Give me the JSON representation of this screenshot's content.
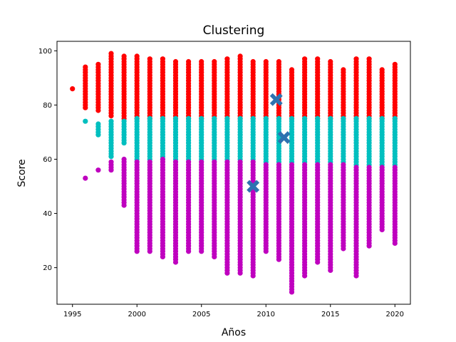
{
  "chart_data": {
    "type": "scatter",
    "title": "Clustering",
    "xlabel": "Años",
    "ylabel": "Score",
    "xlim": [
      1993.8,
      2021.2
    ],
    "ylim": [
      6.5,
      103.5
    ],
    "xticks": [
      1995,
      2000,
      2005,
      2010,
      2015,
      2020
    ],
    "yticks": [
      20,
      40,
      60,
      80,
      100
    ],
    "grid": false,
    "legend": "none",
    "colors": {
      "high": "#ff0000",
      "mid": "#00bfbf",
      "low": "#bf00bf",
      "centroid": "#2d72b0"
    },
    "clusters": [
      {
        "color_key": "high",
        "ranges": [
          [
            1995,
            86,
            86
          ],
          [
            1996,
            79,
            94
          ],
          [
            1997,
            78,
            95
          ],
          [
            1998,
            76,
            99
          ],
          [
            1999,
            75,
            98
          ],
          [
            2000,
            75,
            98
          ],
          [
            2001,
            75,
            97
          ],
          [
            2002,
            75,
            97
          ],
          [
            2003,
            75,
            96
          ],
          [
            2004,
            75,
            96
          ],
          [
            2005,
            75,
            96
          ],
          [
            2006,
            75,
            96
          ],
          [
            2007,
            75,
            97
          ],
          [
            2008,
            75,
            98
          ],
          [
            2009,
            75,
            96
          ],
          [
            2010,
            75,
            96
          ],
          [
            2011,
            75,
            96
          ],
          [
            2012,
            75,
            93
          ],
          [
            2013,
            75,
            97
          ],
          [
            2014,
            75,
            97
          ],
          [
            2015,
            75,
            96
          ],
          [
            2016,
            75,
            93
          ],
          [
            2017,
            75,
            97
          ],
          [
            2018,
            75,
            97
          ],
          [
            2019,
            75,
            93
          ],
          [
            2020,
            75,
            95
          ]
        ]
      },
      {
        "color_key": "mid",
        "ranges": [
          [
            1996,
            74,
            74
          ],
          [
            1997,
            69,
            73
          ],
          [
            1998,
            61,
            74
          ],
          [
            1999,
            66,
            74
          ],
          [
            2000,
            60,
            75
          ],
          [
            2001,
            60,
            75
          ],
          [
            2002,
            60,
            75
          ],
          [
            2003,
            60,
            75
          ],
          [
            2004,
            60,
            75
          ],
          [
            2005,
            60,
            75
          ],
          [
            2006,
            60,
            75
          ],
          [
            2007,
            60,
            75
          ],
          [
            2008,
            60,
            75
          ],
          [
            2009,
            60,
            75
          ],
          [
            2010,
            59,
            75
          ],
          [
            2011,
            59,
            75
          ],
          [
            2012,
            59,
            75
          ],
          [
            2013,
            59,
            75
          ],
          [
            2014,
            59,
            75
          ],
          [
            2015,
            59,
            75
          ],
          [
            2016,
            59,
            75
          ],
          [
            2017,
            58,
            75
          ],
          [
            2018,
            58,
            75
          ],
          [
            2019,
            58,
            75
          ],
          [
            2020,
            58,
            75
          ]
        ]
      },
      {
        "color_key": "low",
        "ranges": [
          [
            1996,
            53,
            53
          ],
          [
            1997,
            56,
            56
          ],
          [
            1998,
            56,
            59
          ],
          [
            1999,
            43,
            60
          ],
          [
            2000,
            26,
            59
          ],
          [
            2001,
            26,
            59
          ],
          [
            2002,
            24,
            60
          ],
          [
            2003,
            22,
            59
          ],
          [
            2004,
            26,
            59
          ],
          [
            2005,
            26,
            59
          ],
          [
            2006,
            24,
            59
          ],
          [
            2007,
            18,
            59
          ],
          [
            2008,
            18,
            59
          ],
          [
            2009,
            17,
            59
          ],
          [
            2010,
            26,
            58
          ],
          [
            2011,
            23,
            58
          ],
          [
            2012,
            11,
            58
          ],
          [
            2013,
            17,
            58
          ],
          [
            2014,
            22,
            58
          ],
          [
            2015,
            19,
            58
          ],
          [
            2016,
            27,
            58
          ],
          [
            2017,
            17,
            57
          ],
          [
            2018,
            28,
            57
          ],
          [
            2019,
            34,
            57
          ],
          [
            2020,
            29,
            57
          ]
        ]
      }
    ],
    "centroids": [
      {
        "x": 2010.8,
        "y": 82
      },
      {
        "x": 2011.4,
        "y": 68
      },
      {
        "x": 2009.0,
        "y": 50
      }
    ]
  }
}
